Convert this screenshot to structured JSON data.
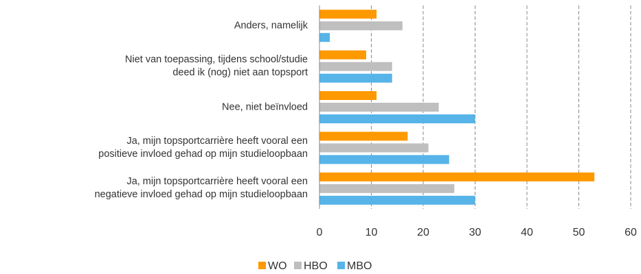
{
  "chart_data": {
    "type": "bar",
    "orientation": "horizontal",
    "categories": [
      "Anders, namelijk",
      "Niet van toepassing, tijdens school/studie deed ik (nog) niet aan topsport",
      "Nee, niet beïnvloed",
      "Ja, mijn topsportcarrière heeft vooral een positieve invloed gehad op mijn studieloopbaan",
      "Ja, mijn topsportcarrière heeft vooral een negatieve invloed gehad op mijn studieloopbaan"
    ],
    "series": [
      {
        "name": "WO",
        "color": "#ff9900",
        "values": [
          11,
          9,
          11,
          17,
          53
        ]
      },
      {
        "name": "HBO",
        "color": "#bfbfbf",
        "values": [
          16,
          14,
          23,
          21,
          26
        ]
      },
      {
        "name": "MBO",
        "color": "#56b4e9",
        "values": [
          2,
          14,
          30,
          25,
          30
        ]
      }
    ],
    "xlim": [
      0,
      60
    ],
    "xticks": [
      0,
      10,
      20,
      30,
      40,
      50,
      60
    ],
    "grid": true,
    "legend": "bottom"
  }
}
